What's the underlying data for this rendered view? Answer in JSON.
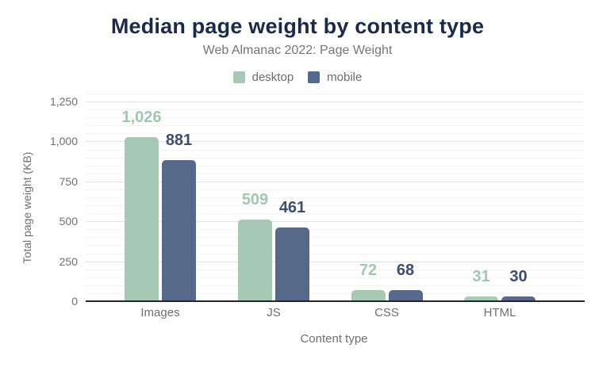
{
  "chart_data": {
    "type": "bar",
    "title": "Median page weight by content type",
    "subtitle": "Web Almanac 2022: Page Weight",
    "xlabel": "Content type",
    "ylabel": "Total page weight (KB)",
    "categories": [
      "Images",
      "JS",
      "CSS",
      "HTML"
    ],
    "series": [
      {
        "name": "desktop",
        "color": "#a5c9b4",
        "label_color": "#a2c7b1",
        "values": [
          1026,
          509,
          72,
          31
        ],
        "value_labels": [
          "1,026",
          "509",
          "72",
          "31"
        ]
      },
      {
        "name": "mobile",
        "color": "#56698b",
        "label_color": "#3d4d6b",
        "values": [
          881,
          461,
          68,
          30
        ],
        "value_labels": [
          "881",
          "461",
          "68",
          "30"
        ]
      }
    ],
    "ylim": [
      0,
      1250
    ],
    "yticks": [
      {
        "value": 0,
        "label": "0"
      },
      {
        "value": 250,
        "label": "250"
      },
      {
        "value": 500,
        "label": "500"
      },
      {
        "value": 750,
        "label": "750"
      },
      {
        "value": 1000,
        "label": "1,000"
      },
      {
        "value": 1250,
        "label": "1,250"
      }
    ],
    "minor_grid_step": 50,
    "minor_grid_max": 1300,
    "grid": true,
    "legend_position": "top"
  },
  "styles": {
    "title_color": "#1b2a4a",
    "subtitle_color": "#757575",
    "legend_text_color": "#6b6b6b",
    "axis_text_color": "#6f6f6f",
    "major_grid_color": "#e3e3e3",
    "minor_grid_color": "#f4f4f4",
    "baseline_color": "#262626"
  }
}
